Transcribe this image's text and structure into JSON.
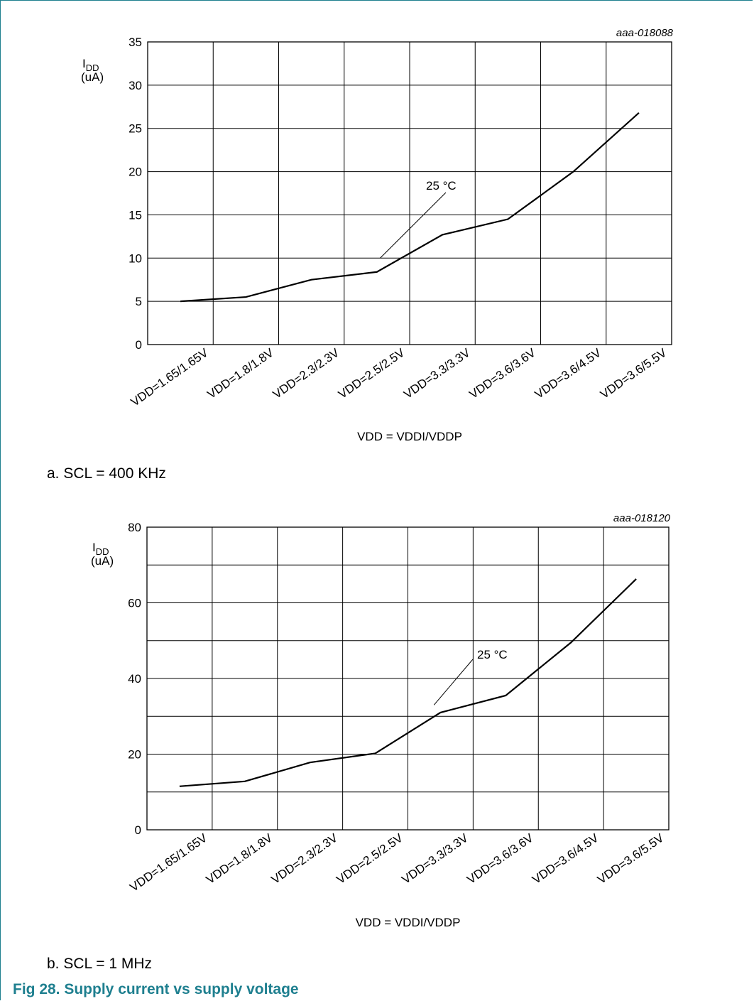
{
  "figure_title": "Fig 28.   Supply current vs supply voltage",
  "chart_data": [
    {
      "type": "line",
      "id_label": "aaa-018088",
      "caption": "a.  SCL = 400 KHz",
      "xlabel": "VDD = VDDI/VDDP",
      "ylabel": {
        "main": "I",
        "sub": "DD",
        "unit": "(uA)"
      },
      "categories": [
        "VDD=1.65/1.65V",
        "VDD=1.8/1.8V",
        "VDD=2.3/2.3V",
        "VDD=2.5/2.5V",
        "VDD=3.3/3.3V",
        "VDD=3.6/3.6V",
        "VDD=3.6/4.5V",
        "VDD=3.6/5.5V"
      ],
      "yticks": [
        0,
        5,
        10,
        15,
        20,
        25,
        30,
        35
      ],
      "ylim": [
        0,
        35
      ],
      "grid": true,
      "series": [
        {
          "values": [
            5.0,
            5.5,
            7.5,
            8.4,
            12.7,
            14.5,
            20.0,
            26.8
          ]
        }
      ],
      "annotation": {
        "text": "25 °C",
        "x_index": 3.55,
        "y_value": 10.0
      }
    },
    {
      "type": "line",
      "id_label": "aaa-018120",
      "caption": "b.  SCL = 1 MHz",
      "xlabel": "VDD = VDDI/VDDP",
      "ylabel": {
        "main": "I",
        "sub": "DD",
        "unit": "(uA)"
      },
      "categories": [
        "VDD=1.65/1.65V",
        "VDD=1.8/1.8V",
        "VDD=2.3/2.3V",
        "VDD=2.5/2.5V",
        "VDD=3.3/3.3V",
        "VDD=3.6/3.6V",
        "VDD=3.6/4.5V",
        "VDD=3.6/5.5V"
      ],
      "yticks": [
        0,
        20,
        40,
        60,
        80
      ],
      "ylim": [
        0,
        80
      ],
      "grid": true,
      "series": [
        {
          "values": [
            11.5,
            12.8,
            17.8,
            20.2,
            31.0,
            35.5,
            49.5,
            66.3
          ]
        }
      ],
      "annotation": {
        "text": "25 °C",
        "x_index": 4.4,
        "y_value": 33.0
      }
    }
  ]
}
